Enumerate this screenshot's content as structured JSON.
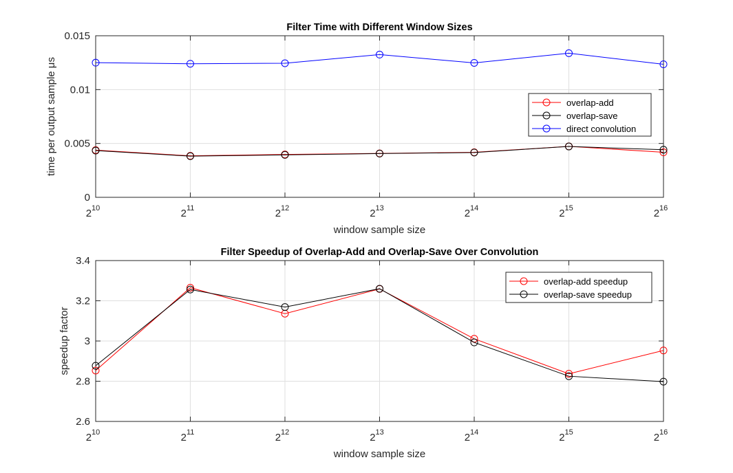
{
  "chart_data": [
    {
      "type": "line",
      "title": "Filter Time with Different Window Sizes",
      "xlabel": "window sample size",
      "ylabel": "time per output sample μs",
      "x": [
        10,
        11,
        12,
        13,
        14,
        15,
        16
      ],
      "x_tick_labels": [
        {
          "base": "2",
          "exp": "10"
        },
        {
          "base": "2",
          "exp": "11"
        },
        {
          "base": "2",
          "exp": "12"
        },
        {
          "base": "2",
          "exp": "13"
        },
        {
          "base": "2",
          "exp": "14"
        },
        {
          "base": "2",
          "exp": "15"
        },
        {
          "base": "2",
          "exp": "16"
        }
      ],
      "xlim": [
        10,
        16
      ],
      "ylim": [
        0,
        0.015
      ],
      "y_ticks": [
        0,
        0.005,
        0.01,
        0.015
      ],
      "y_tick_labels": [
        "0",
        "0.005",
        "0.01",
        "0.015"
      ],
      "grid": true,
      "legend_position": "right",
      "series": [
        {
          "name": "overlap-add",
          "color": "#ff0000",
          "values": [
            0.00438,
            0.00385,
            0.00398,
            0.00408,
            0.00418,
            0.00473,
            0.00418
          ]
        },
        {
          "name": "overlap-save",
          "color": "#000000",
          "values": [
            0.00434,
            0.00382,
            0.00394,
            0.00406,
            0.00416,
            0.00472,
            0.00442
          ]
        },
        {
          "name": "direct convolution",
          "color": "#0000ff",
          "values": [
            0.0125,
            0.0124,
            0.01245,
            0.01325,
            0.01248,
            0.01338,
            0.01235
          ]
        }
      ]
    },
    {
      "type": "line",
      "title": "Filter Speedup of Overlap-Add and Overlap-Save Over Convolution",
      "xlabel": "window sample size",
      "ylabel": "speedup factor",
      "x": [
        10,
        11,
        12,
        13,
        14,
        15,
        16
      ],
      "x_tick_labels": [
        {
          "base": "2",
          "exp": "10"
        },
        {
          "base": "2",
          "exp": "11"
        },
        {
          "base": "2",
          "exp": "12"
        },
        {
          "base": "2",
          "exp": "13"
        },
        {
          "base": "2",
          "exp": "14"
        },
        {
          "base": "2",
          "exp": "15"
        },
        {
          "base": "2",
          "exp": "16"
        }
      ],
      "xlim": [
        10,
        16
      ],
      "ylim": [
        2.6,
        3.4
      ],
      "y_ticks": [
        2.6,
        2.8,
        3.0,
        3.2,
        3.4
      ],
      "y_tick_labels": [
        "2.6",
        "2.8",
        "3",
        "3.2",
        "3.4"
      ],
      "grid": true,
      "legend_position": "top-right",
      "series": [
        {
          "name": "overlap-add speedup",
          "color": "#ff0000",
          "values": [
            2.853,
            3.265,
            3.136,
            3.259,
            3.011,
            2.837,
            2.953
          ]
        },
        {
          "name": "overlap-save speedup",
          "color": "#000000",
          "values": [
            2.877,
            3.256,
            3.169,
            3.26,
            2.993,
            2.825,
            2.798
          ]
        }
      ]
    }
  ]
}
